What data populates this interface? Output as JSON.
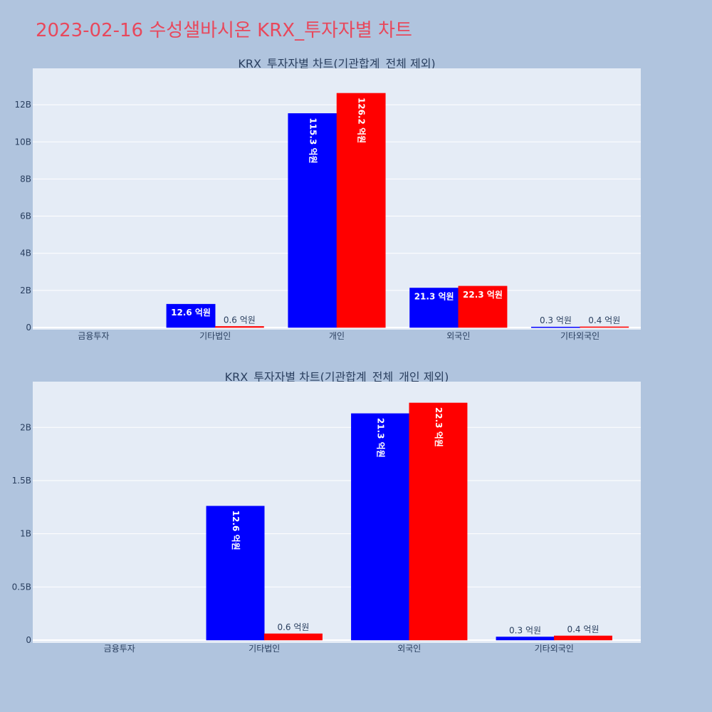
{
  "page": {
    "title": "2023-02-16 수성샐바시온 KRX_투자자별 차트",
    "title_color": "#e8485c",
    "background": "#b0c4de",
    "plot_background": "#e5ecf6"
  },
  "chart_data": [
    {
      "type": "bar",
      "title": "KRX_투자자별 차트(기관합계_전체 제외)",
      "categories": [
        "금융투자",
        "기타법인",
        "개인",
        "외국인",
        "기타외국인"
      ],
      "series": [
        {
          "color": "#0000ff",
          "values": [
            0,
            1260000000,
            11530000000,
            2130000000,
            30000000
          ],
          "labels": [
            "",
            "12.6 억원",
            "115.3 억원",
            "21.3 억원",
            "0.3 억원"
          ]
        },
        {
          "color": "#ff0000",
          "values": [
            0,
            60000000,
            12620000000,
            2230000000,
            40000000
          ],
          "labels": [
            "",
            "0.6 억원",
            "126.2 억원",
            "22.3 억원",
            "0.4 억원"
          ]
        }
      ],
      "ylim": [
        0,
        13500000000
      ],
      "yticks": [
        0,
        2000000000,
        4000000000,
        6000000000,
        8000000000,
        10000000000,
        12000000000
      ],
      "ytick_labels": [
        "0",
        "2B",
        "4B",
        "6B",
        "8B",
        "10B",
        "12B"
      ],
      "grid": true,
      "barmode": "group",
      "xlabel": "",
      "ylabel": ""
    },
    {
      "type": "bar",
      "title": "KRX_투자자별 차트(기관합계_전체_개인 제외)",
      "categories": [
        "금융투자",
        "기타법인",
        "외국인",
        "기타외국인"
      ],
      "series": [
        {
          "color": "#0000ff",
          "values": [
            0,
            1260000000,
            2130000000,
            30000000
          ],
          "labels": [
            "",
            "12.6 억원",
            "21.3 억원",
            "0.3 억원"
          ]
        },
        {
          "color": "#ff0000",
          "values": [
            0,
            60000000,
            2230000000,
            40000000
          ],
          "labels": [
            "",
            "0.6 억원",
            "22.3 억원",
            "0.4 억원"
          ]
        }
      ],
      "ylim": [
        0,
        2350000000
      ],
      "yticks": [
        0,
        500000000,
        1000000000,
        1500000000,
        2000000000
      ],
      "ytick_labels": [
        "0",
        "0.5B",
        "1B",
        "1.5B",
        "2B"
      ],
      "grid": true,
      "barmode": "group",
      "xlabel": "",
      "ylabel": ""
    }
  ]
}
